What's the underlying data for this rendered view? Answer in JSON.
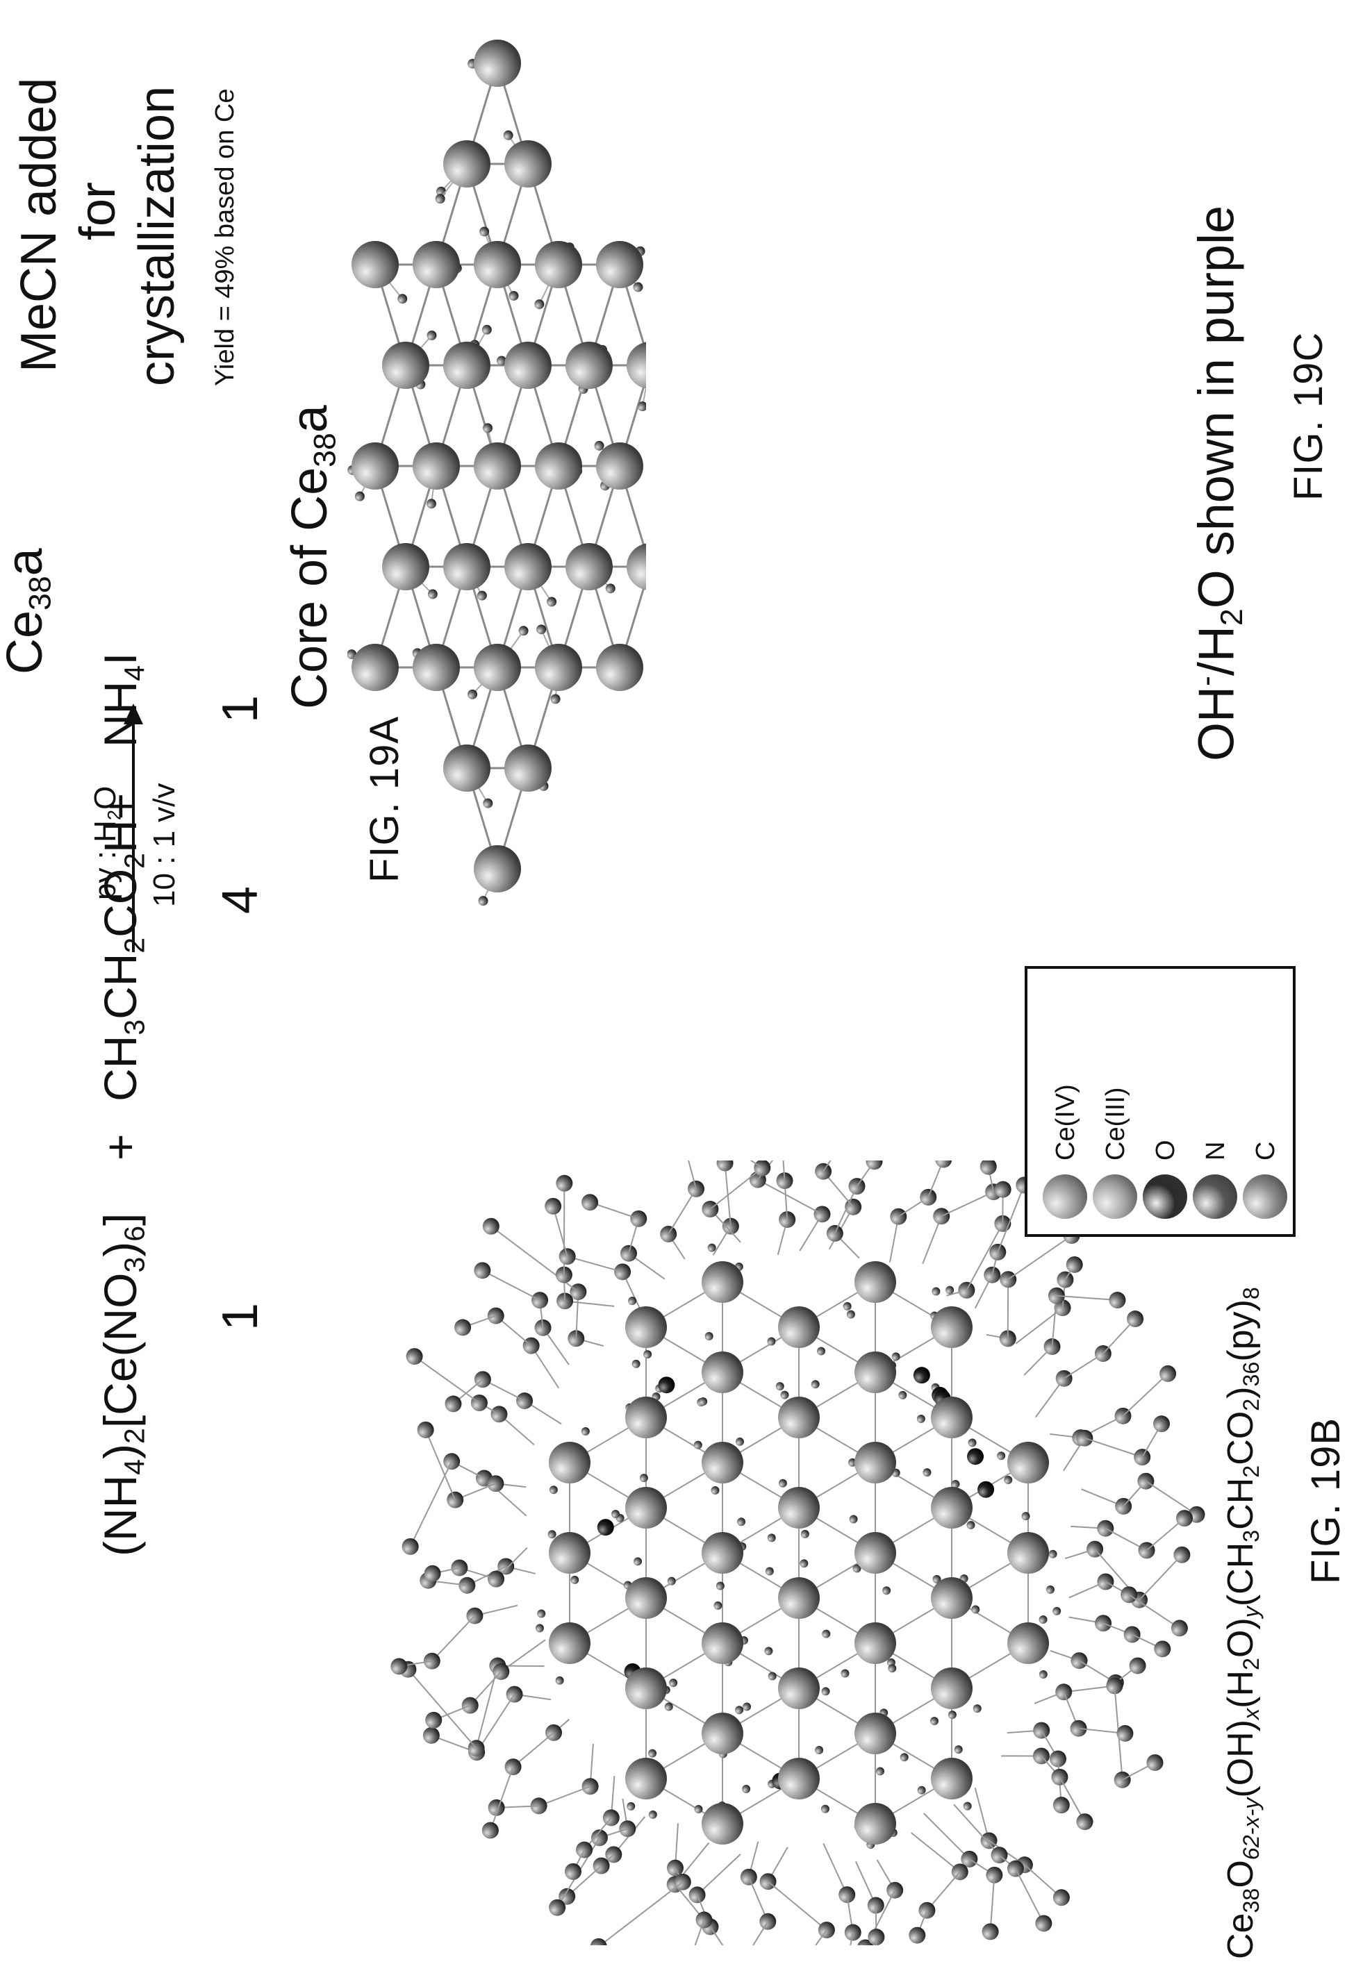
{
  "reaction": {
    "reactant1": {
      "pre": "(NH",
      "sub1": "4",
      "mid": ")",
      "sub2": "2",
      "rest": "[Ce(NO",
      "sub3": "3",
      "rest2": ")",
      "sub4": "6",
      "end": "]"
    },
    "plus1": "+",
    "reactant2": {
      "a": "CH",
      "s1": "3",
      "b": "CH",
      "s2": "2",
      "c": "CO",
      "s3": "2",
      "d": "H+"
    },
    "reactant3": {
      "a": "NH",
      "s1": "4",
      "b": "I"
    },
    "coefficients": [
      "1",
      "4",
      "1"
    ],
    "arrow_top": {
      "a": "py : H",
      "s": "2",
      "b": "O"
    },
    "arrow_bottom": "10 : 1 v/v",
    "product": {
      "a": "Ce",
      "s": "38",
      "b": "a"
    },
    "conditions": [
      "MeCN added",
      "for",
      "crystallization"
    ],
    "yield": "Yield = 49% based on Ce"
  },
  "figure_labels": {
    "fig19a": "FIG. 19A",
    "fig19b": "FIG. 19B",
    "fig19c": "FIG. 19C"
  },
  "core_title": {
    "a": "Core of Ce",
    "s": "38",
    "b": "a"
  },
  "formula": {
    "a": "Ce",
    "s1": "38",
    "b": "O",
    "s2": "62-x-y",
    "c": "(OH)",
    "s3": "x",
    "d": "(H",
    "s4": "2",
    "e": "O)",
    "s5": "y",
    "f": "(CH",
    "s6": "3",
    "g": "CH",
    "s7": "2",
    "h": "CO",
    "s8": "2",
    "i": ")",
    "s9": "36",
    "j": "(py)",
    "s10": "8"
  },
  "oh_note": {
    "a": "OH",
    "sup": "-",
    "b": "/H",
    "s": "2",
    "c": "O shown in purple"
  },
  "legend": [
    {
      "label": "Ce(IV)",
      "color": "#9a9a9a"
    },
    {
      "label": "Ce(III)",
      "color": "#a4a4a4"
    },
    {
      "label": "O",
      "color": "#2b2b2b"
    },
    {
      "label": "N",
      "color": "#555555"
    },
    {
      "label": "C",
      "color": "#8c8c8c"
    }
  ]
}
